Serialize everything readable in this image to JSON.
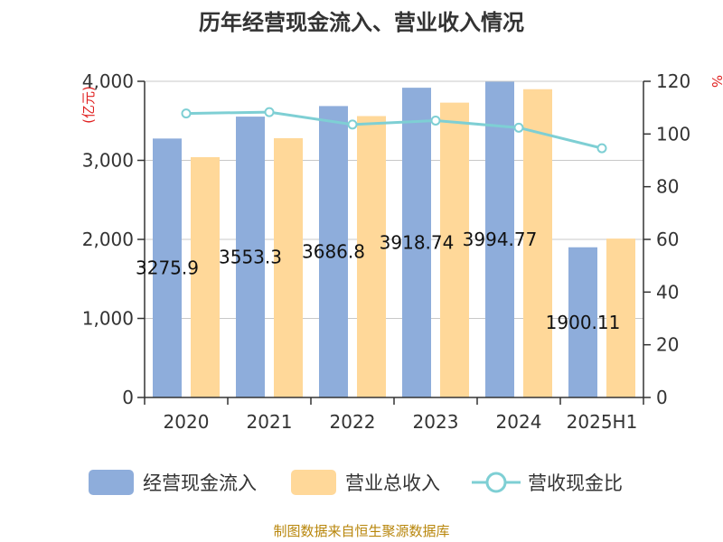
{
  "chart_data": {
    "type": "bar",
    "title": "历年经营现金流入、营业收入情况",
    "categories": [
      "2020",
      "2021",
      "2022",
      "2023",
      "2024",
      "2025H1"
    ],
    "y_left_unit": "(亿元)",
    "y_right_unit": "%",
    "y_left_ticks": [
      "0",
      "1,000",
      "2,000",
      "3,000",
      "4,000"
    ],
    "y_right_ticks": [
      "0",
      "20",
      "40",
      "60",
      "80",
      "100",
      "120"
    ],
    "ylim_left": [
      0,
      4000
    ],
    "ylim_right": [
      0,
      120
    ],
    "series": [
      {
        "name": "经营现金流入",
        "type": "bar",
        "color": "#8eaddb",
        "values": [
          3275.9,
          3553.3,
          3686.8,
          3918.74,
          3994.77,
          1900.11
        ],
        "labels": [
          "3275.9",
          "3553.3",
          "3686.8",
          "3918.74",
          "3994.77",
          "1900.11"
        ]
      },
      {
        "name": "营业总收入",
        "type": "bar",
        "color": "#ffd899",
        "values": [
          3040,
          3280,
          3560,
          3730,
          3900,
          2010
        ]
      },
      {
        "name": "营收现金比",
        "type": "line",
        "axis": "right",
        "color": "#7ecfd4",
        "values": [
          107.8,
          108.3,
          103.6,
          105.1,
          102.4,
          94.6
        ]
      }
    ],
    "grid": true,
    "legend": "bottom"
  },
  "source_text": "制图数据来自恒生聚源数据库"
}
